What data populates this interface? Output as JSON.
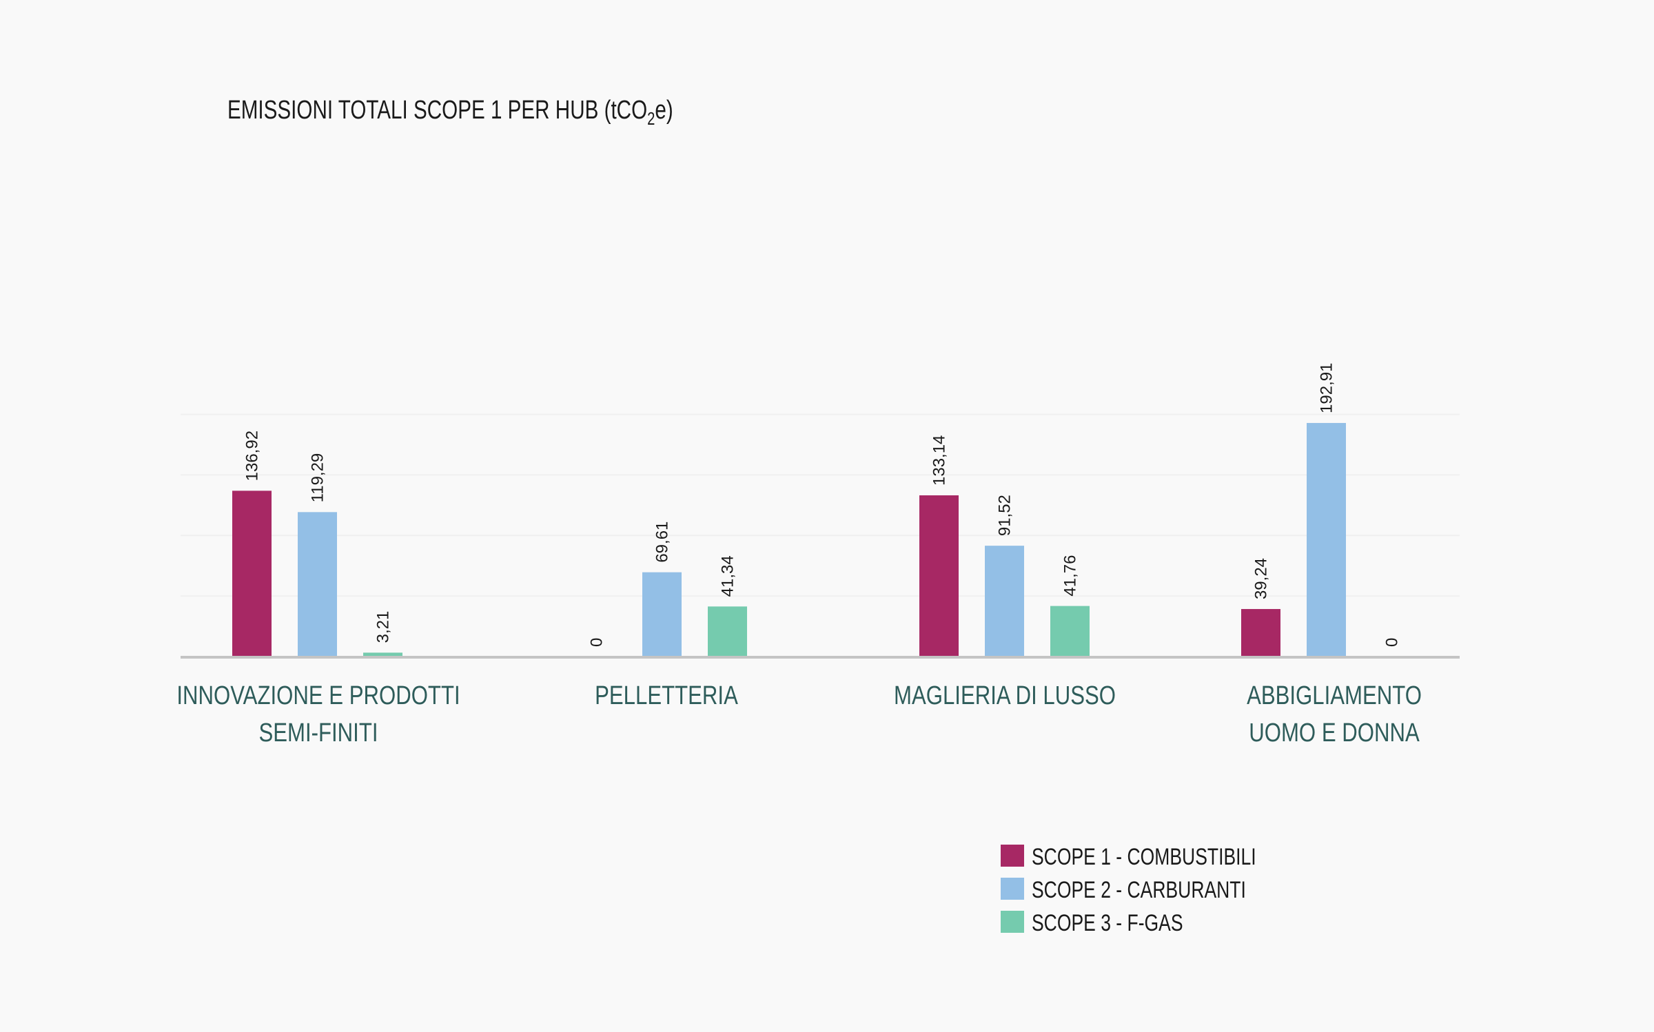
{
  "chart_data": {
    "type": "bar",
    "title": "EMISSIONI TOTALI SCOPE 1 PER HUB (tCO",
    "title_subscript": "2",
    "title_suffix": "e)",
    "categories": [
      [
        "INNOVAZIONE E PRODOTTI",
        "SEMI-FINITI"
      ],
      [
        "PELLETTERIA"
      ],
      [
        "MAGLIERIA DI LUSSO"
      ],
      [
        "ABBIGLIAMENTO",
        "UOMO E DONNA"
      ]
    ],
    "series": [
      {
        "name": "SCOPE 1 - COMBUSTIBILI",
        "color": "#a72864",
        "values": [
          136.92,
          0,
          133.14,
          39.24
        ],
        "labels": [
          "136,92",
          "0",
          "133,14",
          "39,24"
        ]
      },
      {
        "name": "SCOPE 2 - CARBURANTI",
        "color": "#93bfe6",
        "values": [
          119.29,
          69.61,
          91.52,
          192.91
        ],
        "labels": [
          "119,29",
          "69,61",
          "91,52",
          "192,91"
        ]
      },
      {
        "name": "SCOPE 3 - F-GAS",
        "color": "#75cbae",
        "values": [
          3.21,
          41.34,
          41.76,
          0
        ],
        "labels": [
          "3,21",
          "41,34",
          "41,76",
          "0"
        ]
      }
    ],
    "ylim": [
      0,
      200
    ],
    "grid": true,
    "legend_position": "bottom-right",
    "colors": {
      "axis": "#c4c4c4",
      "grid": "#f0f0f0",
      "category_text": "#2e5c5a",
      "text": "#1a1a1a"
    }
  }
}
